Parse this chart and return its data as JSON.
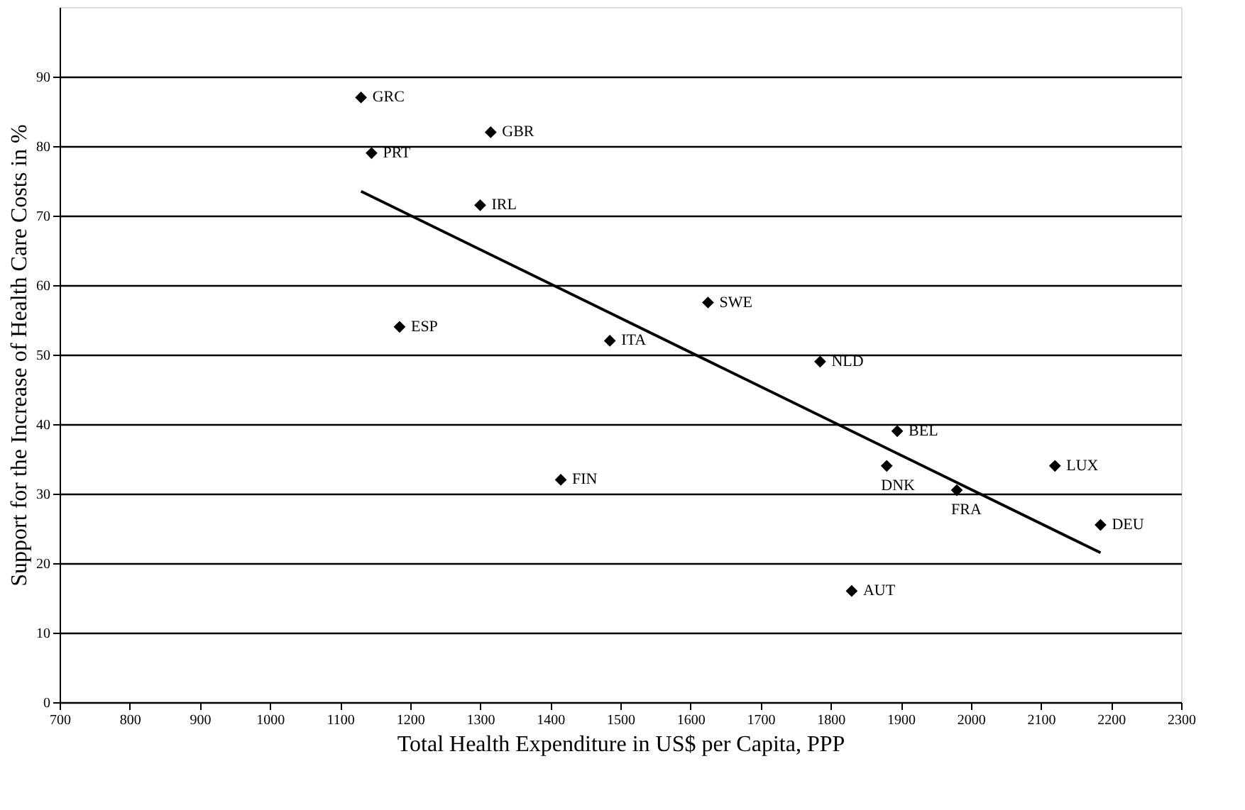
{
  "chart_data": {
    "type": "scatter",
    "xlabel": "Total Health Expenditure in US$ per Capita, PPP",
    "ylabel": "Support for the Increase of Health Care Costs in %",
    "xlim": [
      700,
      2300
    ],
    "xticks": [
      700,
      800,
      900,
      1000,
      1100,
      1200,
      1300,
      1400,
      1500,
      1600,
      1700,
      1800,
      1900,
      2000,
      2100,
      2200,
      2300
    ],
    "ylim": [
      0,
      100
    ],
    "yticks": [
      0,
      10,
      20,
      30,
      40,
      50,
      60,
      70,
      80,
      90
    ],
    "grid": "y",
    "marker": "diamond",
    "series": [
      {
        "color": "#000000",
        "x": [
          1130,
          1315,
          1145,
          1300,
          1185,
          1485,
          1625,
          1785,
          1415,
          1895,
          1880,
          1980,
          2120,
          2185,
          1830
        ],
        "values": [
          87,
          82,
          79,
          71.5,
          54,
          52,
          57.5,
          49,
          32,
          39,
          34,
          30.5,
          34,
          25.5,
          16
        ]
      },
      {
        "type": "line",
        "color": "#000000",
        "marker": "none",
        "line_style": "solid",
        "x": [
          1130,
          2185
        ],
        "values": [
          73.5,
          21.5
        ]
      }
    ],
    "annotations": [
      {
        "text": "GRC",
        "x": 1130,
        "y": 87
      },
      {
        "text": "GBR",
        "x": 1315,
        "y": 82
      },
      {
        "text": "PRT",
        "x": 1145,
        "y": 79
      },
      {
        "text": "IRL",
        "x": 1300,
        "y": 71.5
      },
      {
        "text": "ESP",
        "x": 1185,
        "y": 54
      },
      {
        "text": "ITA",
        "x": 1485,
        "y": 52
      },
      {
        "text": "SWE",
        "x": 1625,
        "y": 57.5
      },
      {
        "text": "NLD",
        "x": 1785,
        "y": 49
      },
      {
        "text": "FIN",
        "x": 1415,
        "y": 32
      },
      {
        "text": "BEL",
        "x": 1895,
        "y": 39
      },
      {
        "text": "DNK",
        "x": 1880,
        "y": 34
      },
      {
        "text": "FRA",
        "x": 1980,
        "y": 30.5
      },
      {
        "text": "LUX",
        "x": 2120,
        "y": 34
      },
      {
        "text": "DEU",
        "x": 2185,
        "y": 25.5
      },
      {
        "text": "AUT",
        "x": 1830,
        "y": 16
      }
    ]
  }
}
